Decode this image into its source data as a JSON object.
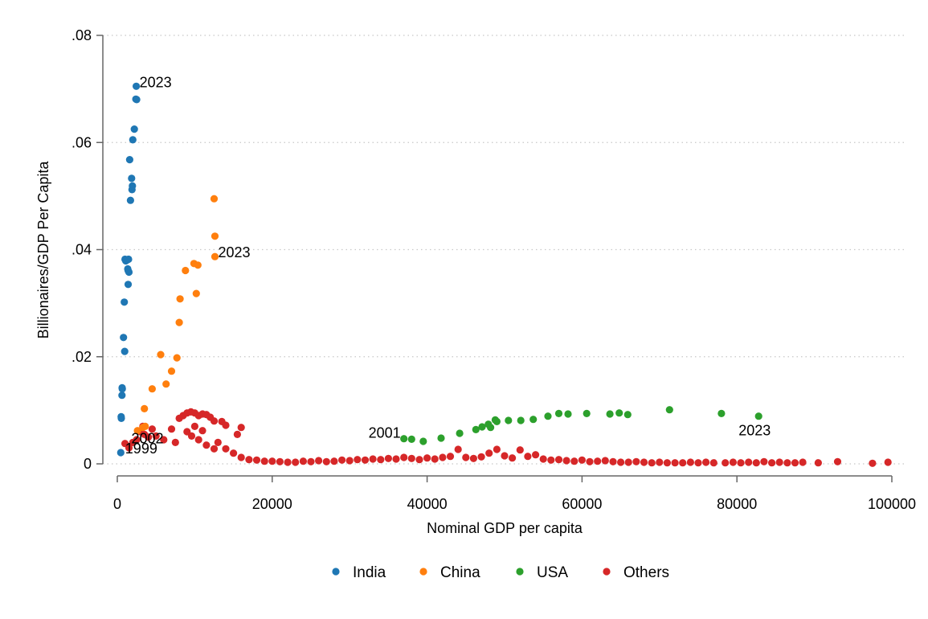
{
  "chart_data": {
    "type": "scatter",
    "xlabel": "Nominal GDP per capita",
    "ylabel": "Billionaires/GDP Per Capita",
    "xlim": [
      0,
      100000
    ],
    "ylim": [
      0,
      0.08
    ],
    "x_ticks": [
      0,
      20000,
      40000,
      60000,
      80000,
      100000
    ],
    "x_tick_labels": [
      "0",
      "20000",
      "40000",
      "60000",
      "80000",
      "100000"
    ],
    "y_ticks": [
      0,
      0.02,
      0.04,
      0.06,
      0.08
    ],
    "y_tick_labels": [
      "0",
      ".02",
      ".04",
      ".06",
      ".08"
    ],
    "grid": "horizontal dotted",
    "legend_position": "bottom",
    "series": [
      {
        "name": "India",
        "color": "#1f77b4",
        "points": [
          [
            450,
            0.0021
          ],
          [
            500,
            0.0088
          ],
          [
            520,
            0.0085
          ],
          [
            600,
            0.0128
          ],
          [
            620,
            0.0142
          ],
          [
            640,
            0.014
          ],
          [
            800,
            0.0236
          ],
          [
            900,
            0.0302
          ],
          [
            950,
            0.021
          ],
          [
            1000,
            0.0382
          ],
          [
            1100,
            0.0379
          ],
          [
            1300,
            0.0381
          ],
          [
            1350,
            0.0364
          ],
          [
            1400,
            0.0361
          ],
          [
            1450,
            0.0382
          ],
          [
            1500,
            0.0358
          ],
          [
            1400,
            0.0335
          ],
          [
            1600,
            0.0568
          ],
          [
            1700,
            0.0492
          ],
          [
            1850,
            0.0533
          ],
          [
            1900,
            0.0512
          ],
          [
            1950,
            0.0519
          ],
          [
            2000,
            0.0605
          ],
          [
            2200,
            0.0625
          ],
          [
            2400,
            0.0681
          ],
          [
            2500,
            0.068
          ],
          [
            2450,
            0.0705
          ]
        ]
      },
      {
        "name": "China",
        "color": "#ff7f0e",
        "points": [
          [
            2600,
            0.0062
          ],
          [
            3300,
            0.0068
          ],
          [
            3500,
            0.0103
          ],
          [
            3600,
            0.007
          ],
          [
            4500,
            0.014
          ],
          [
            5600,
            0.0204
          ],
          [
            6300,
            0.0149
          ],
          [
            7000,
            0.0173
          ],
          [
            7700,
            0.0198
          ],
          [
            8000,
            0.0264
          ],
          [
            8100,
            0.0308
          ],
          [
            8800,
            0.0361
          ],
          [
            9900,
            0.0374
          ],
          [
            10200,
            0.0318
          ],
          [
            10400,
            0.0371
          ],
          [
            12500,
            0.0495
          ],
          [
            12600,
            0.0425
          ],
          [
            12600,
            0.0387
          ]
        ]
      },
      {
        "name": "USA",
        "color": "#2ca02c",
        "points": [
          [
            37000,
            0.0047
          ],
          [
            38000,
            0.0046
          ],
          [
            39500,
            0.0042
          ],
          [
            41800,
            0.0048
          ],
          [
            44200,
            0.0057
          ],
          [
            46300,
            0.0064
          ],
          [
            47100,
            0.0069
          ],
          [
            47900,
            0.0074
          ],
          [
            48200,
            0.0068
          ],
          [
            48800,
            0.0082
          ],
          [
            49000,
            0.0079
          ],
          [
            50500,
            0.0081
          ],
          [
            52100,
            0.0081
          ],
          [
            53700,
            0.0083
          ],
          [
            55600,
            0.0089
          ],
          [
            57000,
            0.0094
          ],
          [
            58200,
            0.0093
          ],
          [
            60600,
            0.0094
          ],
          [
            63600,
            0.0093
          ],
          [
            64800,
            0.0095
          ],
          [
            65900,
            0.0092
          ],
          [
            71300,
            0.0101
          ],
          [
            78000,
            0.0094
          ],
          [
            82800,
            0.0089
          ]
        ]
      },
      {
        "name": "Others",
        "color": "#d62728",
        "points": [
          [
            1000,
            0.0038
          ],
          [
            1500,
            0.003
          ],
          [
            2000,
            0.004
          ],
          [
            2500,
            0.0045
          ],
          [
            3000,
            0.006
          ],
          [
            3300,
            0.007
          ],
          [
            3500,
            0.0055
          ],
          [
            4000,
            0.005
          ],
          [
            4500,
            0.0065
          ],
          [
            5000,
            0.0052
          ],
          [
            6000,
            0.0045
          ],
          [
            7000,
            0.0065
          ],
          [
            7500,
            0.004
          ],
          [
            8000,
            0.0085
          ],
          [
            8500,
            0.009
          ],
          [
            9000,
            0.0095
          ],
          [
            9500,
            0.0097
          ],
          [
            10000,
            0.0095
          ],
          [
            10500,
            0.009
          ],
          [
            11000,
            0.0093
          ],
          [
            11500,
            0.0092
          ],
          [
            12000,
            0.0087
          ],
          [
            12500,
            0.008
          ],
          [
            13500,
            0.0079
          ],
          [
            14000,
            0.0072
          ],
          [
            15500,
            0.0055
          ],
          [
            16000,
            0.0068
          ],
          [
            9000,
            0.006
          ],
          [
            9600,
            0.0052
          ],
          [
            10500,
            0.0045
          ],
          [
            11500,
            0.0035
          ],
          [
            12500,
            0.0028
          ],
          [
            10000,
            0.007
          ],
          [
            11000,
            0.0062
          ],
          [
            13000,
            0.004
          ],
          [
            14000,
            0.0028
          ],
          [
            15000,
            0.002
          ],
          [
            16000,
            0.0012
          ],
          [
            17000,
            0.0008
          ],
          [
            18000,
            0.0007
          ],
          [
            19000,
            0.0005
          ],
          [
            20000,
            0.0005
          ],
          [
            21000,
            0.0004
          ],
          [
            22000,
            0.0003
          ],
          [
            23000,
            0.0003
          ],
          [
            24000,
            0.0005
          ],
          [
            25000,
            0.0004
          ],
          [
            26000,
            0.0006
          ],
          [
            27000,
            0.0004
          ],
          [
            28000,
            0.0005
          ],
          [
            29000,
            0.0007
          ],
          [
            30000,
            0.0006
          ],
          [
            31000,
            0.0008
          ],
          [
            32000,
            0.0007
          ],
          [
            33000,
            0.0009
          ],
          [
            34000,
            0.0008
          ],
          [
            35000,
            0.001
          ],
          [
            36000,
            0.0009
          ],
          [
            37000,
            0.0012
          ],
          [
            38000,
            0.001
          ],
          [
            39000,
            0.0008
          ],
          [
            40000,
            0.0011
          ],
          [
            41000,
            0.0009
          ],
          [
            42000,
            0.0012
          ],
          [
            43000,
            0.0014
          ],
          [
            44000,
            0.0027
          ],
          [
            45000,
            0.0012
          ],
          [
            46000,
            0.001
          ],
          [
            47000,
            0.0013
          ],
          [
            48000,
            0.002
          ],
          [
            49000,
            0.0027
          ],
          [
            50000,
            0.0015
          ],
          [
            51000,
            0.0011
          ],
          [
            52000,
            0.0026
          ],
          [
            53000,
            0.0014
          ],
          [
            54000,
            0.0017
          ],
          [
            55000,
            0.0009
          ],
          [
            56000,
            0.0007
          ],
          [
            57000,
            0.0008
          ],
          [
            58000,
            0.0006
          ],
          [
            59000,
            0.0005
          ],
          [
            60000,
            0.0007
          ],
          [
            61000,
            0.0004
          ],
          [
            62000,
            0.0005
          ],
          [
            63000,
            0.0006
          ],
          [
            64000,
            0.0004
          ],
          [
            65000,
            0.0003
          ],
          [
            66000,
            0.0003
          ],
          [
            67000,
            0.0004
          ],
          [
            68000,
            0.0003
          ],
          [
            69000,
            0.0002
          ],
          [
            70000,
            0.0003
          ],
          [
            71000,
            0.0002
          ],
          [
            72000,
            0.0002
          ],
          [
            73000,
            0.0002
          ],
          [
            74000,
            0.0003
          ],
          [
            75000,
            0.0002
          ],
          [
            76000,
            0.0003
          ],
          [
            77000,
            0.0002
          ],
          [
            78500,
            0.0002
          ],
          [
            79500,
            0.0003
          ],
          [
            80500,
            0.0002
          ],
          [
            81500,
            0.0003
          ],
          [
            82500,
            0.0002
          ],
          [
            83500,
            0.0004
          ],
          [
            84500,
            0.0002
          ],
          [
            85500,
            0.0003
          ],
          [
            86500,
            0.0002
          ],
          [
            87500,
            0.0002
          ],
          [
            88500,
            0.0003
          ],
          [
            90500,
            0.0002
          ],
          [
            93000,
            0.0004
          ],
          [
            97500,
            0.0001
          ],
          [
            99500,
            0.0003
          ]
        ]
      }
    ],
    "annotations": [
      {
        "text": "2023",
        "x": 2450,
        "y": 0.0705,
        "anchor": "start"
      },
      {
        "text": "2023",
        "x": 12600,
        "y": 0.0387,
        "anchor": "start"
      },
      {
        "text": "2023",
        "x": 82800,
        "y": 0.0089,
        "anchor": "below"
      },
      {
        "text": "2001",
        "x": 37000,
        "y": 0.0047,
        "anchor": "end"
      },
      {
        "text": "2002",
        "x": 1400,
        "y": 0.004,
        "anchor": "start"
      },
      {
        "text": "1999",
        "x": 600,
        "y": 0.0021,
        "anchor": "start"
      }
    ],
    "legend": [
      {
        "label": "India",
        "color": "#1f77b4"
      },
      {
        "label": "China",
        "color": "#ff7f0e"
      },
      {
        "label": "USA",
        "color": "#2ca02c"
      },
      {
        "label": "Others",
        "color": "#d62728"
      }
    ]
  }
}
